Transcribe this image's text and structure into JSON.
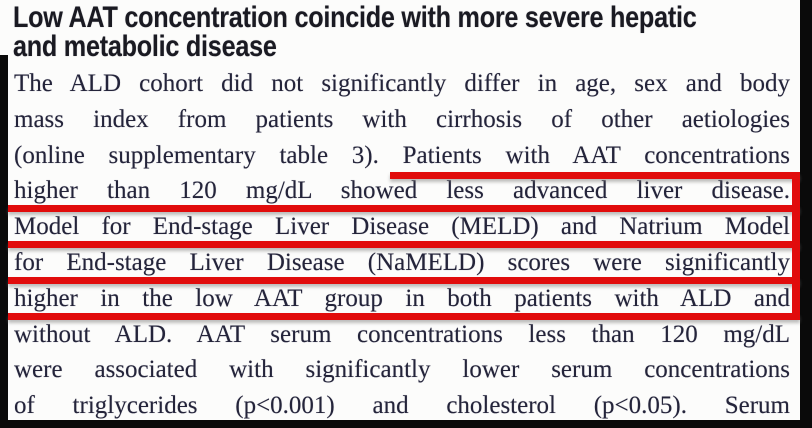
{
  "document": {
    "heading": {
      "lines": [
        "Low AAT concentration coincide with more severe hepatic",
        "and metabolic disease"
      ]
    },
    "body": {
      "lines": [
        {
          "text": "The ALD cohort did not significantly differ in age, sex and body",
          "red_underline": "none"
        },
        {
          "text": "mass index from patients with cirrhosis of other aetiologies",
          "red_underline": "none"
        },
        {
          "text": "(online supplementary table 3). Patients with AAT concentrations",
          "red_underline": "partial-from-Patients"
        },
        {
          "text": "higher than 120 mg/dL showed less advanced liver disease.",
          "red_underline": "full"
        },
        {
          "text": "Model for End-stage Liver Disease (MELD) and Natrium Model",
          "red_underline": "full"
        },
        {
          "text": "for End-stage Liver Disease (NaMELD) scores were significantly",
          "red_underline": "full"
        },
        {
          "text": "higher in the low AAT group in both patients with ALD and",
          "red_underline": "full"
        },
        {
          "text": "without ALD. AAT serum concentrations less than 120 mg/dL",
          "red_underline": "none"
        },
        {
          "text": "were associated with significantly lower serum concentrations",
          "red_underline": "none"
        },
        {
          "text": "of triglycerides (p<0.001) and cholesterol (p<0.05). Serum",
          "red_underline": "none"
        }
      ]
    },
    "annotation": {
      "underlined_text": "Patients with AAT concentrations higher than 120 mg/dL showed less advanced liver disease. Model for End-stage Liver Disease (MELD) and Natrium Model for End-stage Liver Disease (NaMELD) scores were significantly higher in the low AAT group in both patients with ALD and",
      "color": "#e10c0c",
      "style": "five horizontal underline strokes joined by a vertical stroke at the right margin"
    },
    "colors": {
      "background": "#fcfcfb",
      "body_text": "#24243a",
      "heading_text": "#1a1a22",
      "border_bars": "#0a0a0a"
    }
  }
}
